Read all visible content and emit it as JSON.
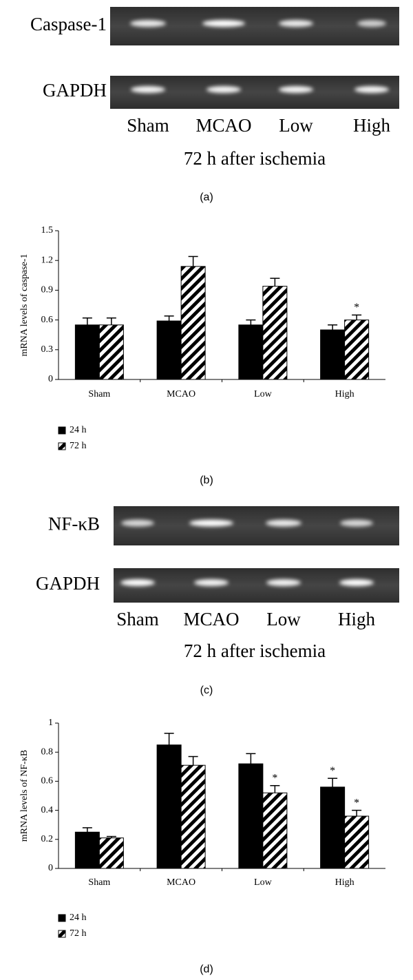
{
  "gels": [
    {
      "target": "Caspase-1",
      "control": "GAPDH",
      "lanes": [
        "Sham",
        "MCAO",
        "Low",
        "High"
      ],
      "caption": "72 h after ischemia",
      "label": "(a)"
    },
    {
      "target": "NF-κB",
      "control": "GAPDH",
      "lanes": [
        "Sham",
        "MCAO",
        "Low",
        "High"
      ],
      "caption": "72 h after ischemia",
      "label": "(c)"
    }
  ],
  "chart_data": [
    {
      "type": "bar",
      "label": "(b)",
      "y_label": "mRNA levels of caspase-1",
      "categories": [
        "Sham",
        "MCAO",
        "Low",
        "High"
      ],
      "series": [
        {
          "name": "24 h",
          "color": "#000000",
          "fill": "solid",
          "values": [
            0.55,
            0.59,
            0.55,
            0.5
          ],
          "errors": [
            0.07,
            0.05,
            0.05,
            0.05
          ],
          "significance": [
            null,
            null,
            null,
            null
          ]
        },
        {
          "name": "72 h",
          "color": "#000000",
          "fill": "hatch",
          "values": [
            0.55,
            1.14,
            0.94,
            0.6
          ],
          "errors": [
            0.07,
            0.1,
            0.08,
            0.05
          ],
          "significance": [
            null,
            null,
            null,
            "*"
          ]
        }
      ],
      "ylim": [
        0,
        1.5
      ],
      "yticks": [
        0,
        0.3,
        0.6,
        0.9,
        1.2,
        1.5
      ]
    },
    {
      "type": "bar",
      "label": "(d)",
      "y_label": "mRNA levels of NF-κB",
      "categories": [
        "Sham",
        "MCAO",
        "Low",
        "High"
      ],
      "series": [
        {
          "name": "24 h",
          "color": "#000000",
          "fill": "solid",
          "values": [
            0.25,
            0.85,
            0.72,
            0.56
          ],
          "errors": [
            0.03,
            0.08,
            0.07,
            0.06
          ],
          "significance": [
            null,
            null,
            null,
            "*"
          ]
        },
        {
          "name": "72 h",
          "color": "#000000",
          "fill": "hatch",
          "values": [
            0.21,
            0.71,
            0.52,
            0.36
          ],
          "errors": [
            0.01,
            0.06,
            0.05,
            0.04
          ],
          "significance": [
            null,
            null,
            "*",
            "*"
          ]
        }
      ],
      "ylim": [
        0,
        1
      ],
      "yticks": [
        0,
        0.2,
        0.4,
        0.6,
        0.8,
        1
      ]
    }
  ]
}
